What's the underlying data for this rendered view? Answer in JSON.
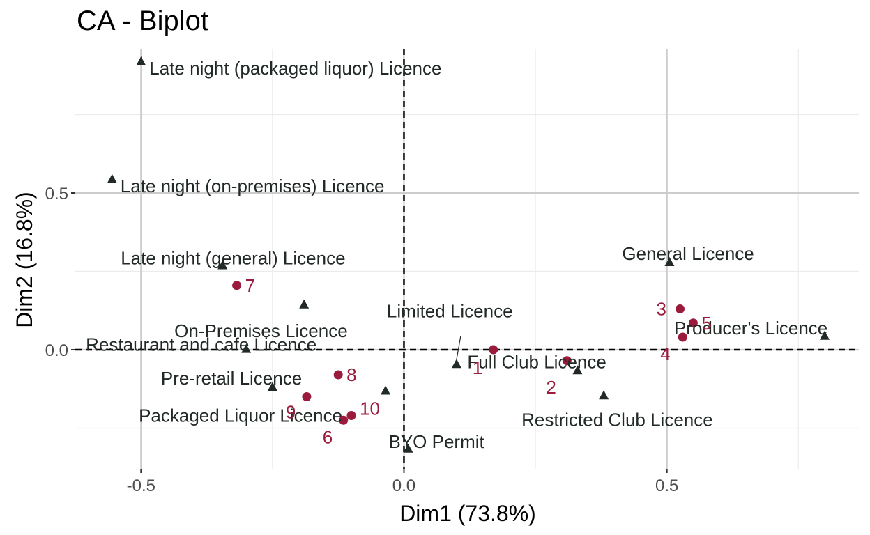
{
  "chart_data": {
    "type": "scatter",
    "title": "CA - Biplot",
    "xlabel": "Dim1 (73.8%)",
    "ylabel": "Dim2 (16.8%)",
    "xlim": [
      -0.625,
      0.865
    ],
    "ylim": [
      -0.38,
      0.96
    ],
    "x_ticks": [
      -0.5,
      0.0,
      0.5
    ],
    "y_ticks": [
      0.0,
      0.5
    ],
    "x_tick_labels": [
      "-0.5",
      "0.0",
      "0.5"
    ],
    "y_tick_labels": [
      "0.0",
      "0.5"
    ],
    "grid": true,
    "reference_lines": {
      "x": 0,
      "y": 0
    },
    "colors": {
      "rows": "#9b1b3d",
      "columns": "#222a26",
      "grid_major": "#cccccc",
      "grid_minor": "#ebebeb"
    },
    "series": [
      {
        "marker": "triangle",
        "points": [
          {
            "label": "Late night (packaged liquor) Licence",
            "x": -0.5,
            "y": 0.92
          },
          {
            "label": "Late night (on-premises) Licence",
            "x": -0.555,
            "y": 0.545
          },
          {
            "label": "Late night (general) Licence",
            "x": -0.345,
            "y": 0.27
          },
          {
            "label": "On-Premises Licence",
            "x": -0.19,
            "y": 0.145
          },
          {
            "label": "Restaurant and cafe Licence",
            "x": -0.3,
            "y": 0.003
          },
          {
            "label": "Pre-retail Licence",
            "x": -0.25,
            "y": -0.118
          },
          {
            "label": "Packaged Liquor Licence",
            "x": -0.035,
            "y": -0.13
          },
          {
            "label": "Limited Licence",
            "x": 0.1,
            "y": -0.045
          },
          {
            "label": "Full Club Licence",
            "x": 0.33,
            "y": -0.065
          },
          {
            "label": "Restricted Club Licence",
            "x": 0.38,
            "y": -0.145
          },
          {
            "label": "BYO Permit",
            "x": 0.008,
            "y": -0.315
          },
          {
            "label": "General Licence",
            "x": 0.505,
            "y": 0.28
          },
          {
            "label": "Producer's Licence",
            "x": 0.8,
            "y": 0.045
          }
        ]
      },
      {
        "marker": "circle",
        "points": [
          {
            "label": "1",
            "x": 0.17,
            "y": 0.0
          },
          {
            "label": "2",
            "x": 0.31,
            "y": -0.035
          },
          {
            "label": "3",
            "x": 0.525,
            "y": 0.13
          },
          {
            "label": "4",
            "x": 0.53,
            "y": 0.04
          },
          {
            "label": "5",
            "x": 0.55,
            "y": 0.085
          },
          {
            "label": "6",
            "x": -0.115,
            "y": -0.225
          },
          {
            "label": "7",
            "x": -0.318,
            "y": 0.205
          },
          {
            "label": "8",
            "x": -0.125,
            "y": -0.08
          },
          {
            "label": "9",
            "x": -0.185,
            "y": -0.15
          },
          {
            "label": "10",
            "x": -0.1,
            "y": -0.21
          }
        ]
      }
    ]
  }
}
